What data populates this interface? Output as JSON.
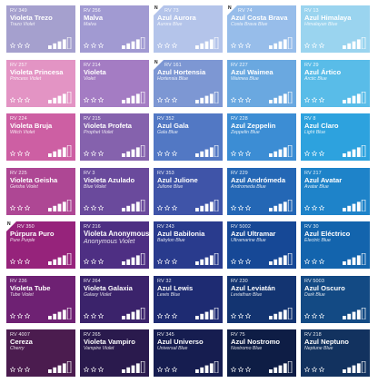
{
  "page": {
    "background": "#ffffff"
  },
  "swatches": [
    {
      "code": "RV 349",
      "name": "Violeta Trezo",
      "sub": "Trazo Violet",
      "color": "#a5a0ce",
      "text": "light",
      "new": false,
      "rating": 1,
      "opacity": 4
    },
    {
      "code": "RV 256",
      "name": "Malva",
      "sub": "Malva",
      "color": "#a19ad2",
      "text": "light",
      "new": false,
      "rating": 1,
      "opacity": 4
    },
    {
      "code": "RV 73",
      "name": "Azul Aurora",
      "sub": "Aurora Blue",
      "color": "#b4c4ea",
      "text": "light",
      "new": true,
      "rating": 1,
      "opacity": 4
    },
    {
      "code": "RV 74",
      "name": "Azul Costa Brava",
      "sub": "Costa Brava Blue",
      "color": "#97bdea",
      "text": "light",
      "new": true,
      "rating": 1,
      "opacity": 4
    },
    {
      "code": "RV 13",
      "name": "Azul Himalaya",
      "sub": "Himalayan Blue",
      "color": "#9ad4ef",
      "text": "light",
      "new": false,
      "rating": 1,
      "opacity": 4
    },
    {
      "code": "RV 257",
      "name": "Violeta Princesa",
      "sub": "Princess Violet",
      "color": "#e394c4",
      "text": "light",
      "new": false,
      "rating": 2,
      "opacity": 4
    },
    {
      "code": "RV 214",
      "name": "Violeta",
      "sub": "Violet",
      "color": "#a47cc3",
      "text": "light",
      "new": false,
      "rating": 2,
      "opacity": 4
    },
    {
      "code": "RV 161",
      "name": "Azul Hortensia",
      "sub": "Hortensia Blue",
      "color": "#7d97d3",
      "text": "light",
      "new": true,
      "rating": 1,
      "opacity": 4
    },
    {
      "code": "RV 227",
      "name": "Azul Waimea",
      "sub": "Waimea Blue",
      "color": "#6aa8e0",
      "text": "light",
      "new": false,
      "rating": 2,
      "opacity": 4
    },
    {
      "code": "RV 29",
      "name": "Azul Ártico",
      "sub": "Arctic Blue",
      "color": "#59bce8",
      "text": "light",
      "new": false,
      "rating": 2,
      "opacity": 4
    },
    {
      "code": "RV 224",
      "name": "Violeta Bruja",
      "sub": "Witch Violet",
      "color": "#cd5fa3",
      "text": "light",
      "new": false,
      "rating": 2,
      "opacity": 4
    },
    {
      "code": "RV 215",
      "name": "Violeta Profeta",
      "sub": "Prophet Violet",
      "color": "#8562ad",
      "text": "light",
      "new": false,
      "rating": 2,
      "opacity": 4
    },
    {
      "code": "RV 352",
      "name": "Azul Gala",
      "sub": "Gala Blue",
      "color": "#5278c4",
      "text": "light",
      "new": false,
      "rating": 2,
      "opacity": 4
    },
    {
      "code": "RV 228",
      "name": "Azul Zeppelin",
      "sub": "Zeppelin Blue",
      "color": "#3c8dd4",
      "text": "light",
      "new": false,
      "rating": 2,
      "opacity": 4
    },
    {
      "code": "RV 8",
      "name": "Azul Claro",
      "sub": "Light Blue",
      "color": "#2da2de",
      "text": "light",
      "new": false,
      "rating": 2,
      "opacity": 4
    },
    {
      "code": "RV 225",
      "name": "Violeta Geisha",
      "sub": "Geisha Violet",
      "color": "#ae4794",
      "text": "light",
      "new": false,
      "rating": 2,
      "opacity": 4
    },
    {
      "code": "RV 3",
      "name": "Violeta Azulado",
      "sub": "Blue Violet",
      "color": "#6a4a9c",
      "text": "light",
      "new": false,
      "rating": 2,
      "opacity": 4
    },
    {
      "code": "RV 353",
      "name": "Azul Julione",
      "sub": "Julione Blue",
      "color": "#3f54a8",
      "text": "light",
      "new": false,
      "rating": 2,
      "opacity": 4
    },
    {
      "code": "RV 229",
      "name": "Azul Andrómeda",
      "sub": "Andromeda Blue",
      "color": "#2467b5",
      "text": "light",
      "new": false,
      "rating": 2,
      "opacity": 4
    },
    {
      "code": "RV 217",
      "name": "Azul Avatar",
      "sub": "Avatar Blue",
      "color": "#1e83c9",
      "text": "light",
      "new": false,
      "rating": 2,
      "opacity": 4
    },
    {
      "code": "RV 350",
      "name": "Púrpura Puro",
      "sub": "Pure Purple",
      "color": "#96237b",
      "text": "light",
      "new": true,
      "rating": 2,
      "opacity": 4
    },
    {
      "code": "RV 216",
      "name": "Violeta Anonymous",
      "sub": "Anonymous Violet",
      "color": "#4e2f83",
      "text": "light",
      "new": false,
      "rating": 2,
      "opacity": 4,
      "big": true
    },
    {
      "code": "RV 243",
      "name": "Azul Babilonia",
      "sub": "Babylon Blue",
      "color": "#293b8d",
      "text": "light",
      "new": false,
      "rating": 2,
      "opacity": 4
    },
    {
      "code": "RV 5002",
      "name": "Azul Ultramar",
      "sub": "Ultramarine Blue",
      "color": "#164896",
      "text": "light",
      "new": false,
      "rating": 2,
      "opacity": 4
    },
    {
      "code": "RV 30",
      "name": "Azul Eléctrico",
      "sub": "Electric Blue",
      "color": "#1364ad",
      "text": "light",
      "new": false,
      "rating": 2,
      "opacity": 4
    },
    {
      "code": "RV 236",
      "name": "Violeta Tube",
      "sub": "Tube Violet",
      "color": "#6e2173",
      "text": "light",
      "new": false,
      "rating": 2,
      "opacity": 4
    },
    {
      "code": "RV 264",
      "name": "Violeta Galaxia",
      "sub": "Galaxy Violet",
      "color": "#3b236b",
      "text": "light",
      "new": false,
      "rating": 2,
      "opacity": 4
    },
    {
      "code": "RV 32",
      "name": "Azul Lewis",
      "sub": "Lewis Blue",
      "color": "#1e2b72",
      "text": "light",
      "new": false,
      "rating": 2,
      "opacity": 4
    },
    {
      "code": "RV 230",
      "name": "Azul Leviatán",
      "sub": "Leviathan Blue",
      "color": "#133471",
      "text": "light",
      "new": false,
      "rating": 2,
      "opacity": 4
    },
    {
      "code": "RV 5003",
      "name": "Azul Oscuro",
      "sub": "Dark Blue",
      "color": "#134a84",
      "text": "light",
      "new": false,
      "rating": 2,
      "opacity": 4
    },
    {
      "code": "RV 4007",
      "name": "Cereza",
      "sub": "Cherry",
      "color": "#4b1c4f",
      "text": "light",
      "new": false,
      "rating": 2,
      "opacity": 4
    },
    {
      "code": "RV 265",
      "name": "Violeta Vampiro",
      "sub": "Vampire Violet",
      "color": "#2a1a4d",
      "text": "light",
      "new": false,
      "rating": 2,
      "opacity": 4
    },
    {
      "code": "RV 345",
      "name": "Azul Universo",
      "sub": "Universal Blue",
      "color": "#161d50",
      "text": "light",
      "new": false,
      "rating": 2,
      "opacity": 4
    },
    {
      "code": "RV 75",
      "name": "Azul Nostromo",
      "sub": "Nostromo Blue",
      "color": "#0e1d45",
      "text": "light",
      "new": false,
      "rating": 2,
      "opacity": 4
    },
    {
      "code": "RV 218",
      "name": "Azul Neptuno",
      "sub": "Neptune Blue",
      "color": "#12325f",
      "text": "light",
      "new": false,
      "rating": 2,
      "opacity": 4
    }
  ]
}
